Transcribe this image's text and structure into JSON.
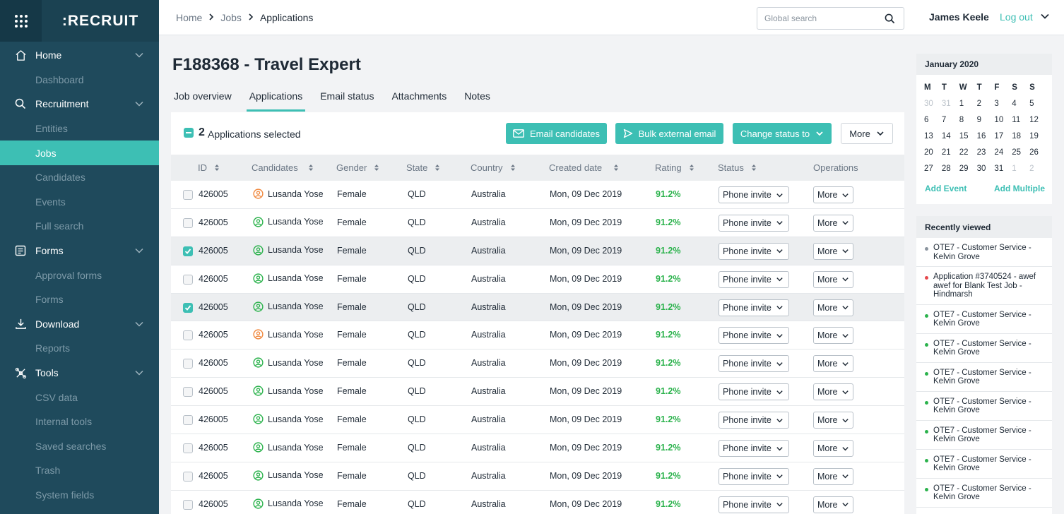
{
  "app": {
    "logo": ":RECRUIT"
  },
  "sidebar": {
    "groups": [
      {
        "label": "Home",
        "icon": "home-icon",
        "items": [
          "Dashboard"
        ]
      },
      {
        "label": "Recruitment",
        "icon": "search-icon",
        "items": [
          "Entities",
          "Jobs",
          "Candidates",
          "Events",
          "Full search"
        ]
      },
      {
        "label": "Forms",
        "icon": "forms-icon",
        "items": [
          "Approval forms",
          "Forms"
        ]
      },
      {
        "label": "Download",
        "icon": "download-icon",
        "items": [
          "Reports"
        ]
      },
      {
        "label": "Tools",
        "icon": "tools-icon",
        "items": [
          "CSV data",
          "Internal tools",
          "Saved searches",
          "Trash",
          "System fields"
        ]
      }
    ],
    "active_item": "Jobs"
  },
  "topbar": {
    "breadcrumb": [
      "Home",
      "Jobs",
      "Applications"
    ],
    "search_placeholder": "Global search",
    "user_name": "James Keele",
    "logout": "Log out"
  },
  "page": {
    "title": "F188368 - Travel Expert",
    "tabs": [
      "Job overview",
      "Applications",
      "Email status",
      "Attachments",
      "Notes"
    ],
    "active_tab": "Applications"
  },
  "actions": {
    "selected_count": "2",
    "selected_label": "Applications selected",
    "email_candidates": "Email candidates",
    "bulk_external_email": "Bulk external email",
    "change_status": "Change status to",
    "more": "More"
  },
  "table": {
    "columns": [
      "ID",
      "Candidates",
      "Gender",
      "State",
      "Country",
      "Created date",
      "Rating",
      "Status",
      "Operations"
    ],
    "rows": [
      {
        "checked": false,
        "id": "426005",
        "avatar": "orange",
        "candidate": "Lusanda Yose",
        "gender": "Female",
        "state": "QLD",
        "country": "Australia",
        "created": "Mon, 09 Dec 2019",
        "rating": "91.2%",
        "status": "Phone invite",
        "operation": "More"
      },
      {
        "checked": false,
        "id": "426005",
        "avatar": "green",
        "candidate": "Lusanda Yose",
        "gender": "Female",
        "state": "QLD",
        "country": "Australia",
        "created": "Mon, 09 Dec 2019",
        "rating": "91.2%",
        "status": "Phone invite",
        "operation": "More"
      },
      {
        "checked": true,
        "id": "426005",
        "avatar": "green",
        "candidate": "Lusanda Yose",
        "gender": "Female",
        "state": "QLD",
        "country": "Australia",
        "created": "Mon, 09 Dec 2019",
        "rating": "91.2%",
        "status": "Phone invite",
        "operation": "More"
      },
      {
        "checked": false,
        "id": "426005",
        "avatar": "green",
        "candidate": "Lusanda Yose",
        "gender": "Female",
        "state": "QLD",
        "country": "Australia",
        "created": "Mon, 09 Dec 2019",
        "rating": "91.2%",
        "status": "Phone invite",
        "operation": "More"
      },
      {
        "checked": true,
        "id": "426005",
        "avatar": "green",
        "candidate": "Lusanda Yose",
        "gender": "Female",
        "state": "QLD",
        "country": "Australia",
        "created": "Mon, 09 Dec 2019",
        "rating": "91.2%",
        "status": "Phone invite",
        "operation": "More"
      },
      {
        "checked": false,
        "id": "426005",
        "avatar": "orange",
        "candidate": "Lusanda Yose",
        "gender": "Female",
        "state": "QLD",
        "country": "Australia",
        "created": "Mon, 09 Dec 2019",
        "rating": "91.2%",
        "status": "Phone invite",
        "operation": "More"
      },
      {
        "checked": false,
        "id": "426005",
        "avatar": "green",
        "candidate": "Lusanda Yose",
        "gender": "Female",
        "state": "QLD",
        "country": "Australia",
        "created": "Mon, 09 Dec 2019",
        "rating": "91.2%",
        "status": "Phone invite",
        "operation": "More"
      },
      {
        "checked": false,
        "id": "426005",
        "avatar": "green",
        "candidate": "Lusanda Yose",
        "gender": "Female",
        "state": "QLD",
        "country": "Australia",
        "created": "Mon, 09 Dec 2019",
        "rating": "91.2%",
        "status": "Phone invite",
        "operation": "More"
      },
      {
        "checked": false,
        "id": "426005",
        "avatar": "green",
        "candidate": "Lusanda Yose",
        "gender": "Female",
        "state": "QLD",
        "country": "Australia",
        "created": "Mon, 09 Dec 2019",
        "rating": "91.2%",
        "status": "Phone invite",
        "operation": "More"
      },
      {
        "checked": false,
        "id": "426005",
        "avatar": "green",
        "candidate": "Lusanda Yose",
        "gender": "Female",
        "state": "QLD",
        "country": "Australia",
        "created": "Mon, 09 Dec 2019",
        "rating": "91.2%",
        "status": "Phone invite",
        "operation": "More"
      },
      {
        "checked": false,
        "id": "426005",
        "avatar": "green",
        "candidate": "Lusanda Yose",
        "gender": "Female",
        "state": "QLD",
        "country": "Australia",
        "created": "Mon, 09 Dec 2019",
        "rating": "91.2%",
        "status": "Phone invite",
        "operation": "More"
      },
      {
        "checked": false,
        "id": "426005",
        "avatar": "green",
        "candidate": "Lusanda Yose",
        "gender": "Female",
        "state": "QLD",
        "country": "Australia",
        "created": "Mon, 09 Dec 2019",
        "rating": "91.2%",
        "status": "Phone invite",
        "operation": "More"
      }
    ]
  },
  "calendar": {
    "title": "January 2020",
    "weekdays": [
      "M",
      "T",
      "W",
      "T",
      "F",
      "S",
      "S"
    ],
    "weeks": [
      [
        "30",
        "31",
        "1",
        "2",
        "3",
        "4",
        "5"
      ],
      [
        "6",
        "7",
        "8",
        "9",
        "10",
        "11",
        "12"
      ],
      [
        "13",
        "14",
        "15",
        "16",
        "17",
        "18",
        "19"
      ],
      [
        "20",
        "21",
        "22",
        "23",
        "24",
        "25",
        "26"
      ],
      [
        "27",
        "28",
        "29",
        "30",
        "31",
        "1",
        "2"
      ]
    ],
    "add_event": "Add Event",
    "add_multiple": "Add Multiple"
  },
  "recently_viewed": {
    "title": "Recently viewed",
    "items": [
      {
        "text": "OTE7 - Customer Service - Kelvin Grove",
        "dot": "#8a949e"
      },
      {
        "text": "Application #3740524 - awef awef for Blank Test Job - Hindmarsh",
        "dot": "#e5484d"
      },
      {
        "text": "OTE7 - Customer Service - Kelvin Grove",
        "dot": "#2bb24c"
      },
      {
        "text": "OTE7 - Customer Service - Kelvin Grove",
        "dot": "#2bb24c"
      },
      {
        "text": "OTE7 - Customer Service - Kelvin Grove",
        "dot": "#2bb24c"
      },
      {
        "text": "OTE7 - Customer Service - Kelvin Grove",
        "dot": "#2bb24c"
      },
      {
        "text": "OTE7 - Customer Service - Kelvin Grove",
        "dot": "#2bb24c"
      },
      {
        "text": "OTE7 - Customer Service - Kelvin Grove",
        "dot": "#2bb24c"
      },
      {
        "text": "OTE7 - Customer Service - Kelvin Grove",
        "dot": "#2bb24c"
      }
    ]
  },
  "colors": {
    "sidebar": "#1f4a5c",
    "accent": "#3dbfb4",
    "rating": "#2bb24c",
    "avatar_green": "#2bb24c",
    "avatar_orange": "#f0883e"
  }
}
